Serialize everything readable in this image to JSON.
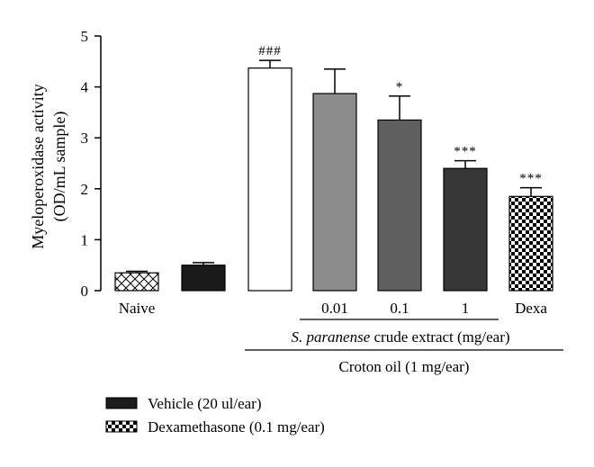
{
  "chart_data": {
    "type": "bar",
    "ylabel": "Myeloperoxidase activity",
    "ylabel_unit": "(OD/mL sample)",
    "ylim": [
      0,
      5
    ],
    "yticks": [
      "0",
      "1",
      "2",
      "3",
      "4",
      "5"
    ],
    "bars": [
      {
        "label": "Naive",
        "value": 0.35,
        "error": 0.03,
        "sig": "",
        "pattern": "crosshatch",
        "color": "#ffffff"
      },
      {
        "label": "",
        "value": 0.5,
        "error": 0.05,
        "sig": "",
        "pattern": "solid",
        "color": "#1a1a1a"
      },
      {
        "label": "",
        "value": 4.37,
        "error": 0.15,
        "sig": "###",
        "pattern": "solid",
        "color": "#ffffff"
      },
      {
        "label": "0.01",
        "value": 3.87,
        "error": 0.48,
        "sig": "",
        "pattern": "solid",
        "color": "#8c8c8c"
      },
      {
        "label": "0.1",
        "value": 3.35,
        "error": 0.47,
        "sig": "*",
        "pattern": "solid",
        "color": "#5f5f5f"
      },
      {
        "label": "1",
        "value": 2.4,
        "error": 0.15,
        "sig": "***",
        "pattern": "solid",
        "color": "#363636"
      },
      {
        "label": "Dexa",
        "value": 1.85,
        "error": 0.17,
        "sig": "***",
        "pattern": "checker",
        "color": "#ffffff"
      }
    ],
    "group_labels": {
      "extract": {
        "prefix": "S. paranense",
        "suffix": " crude extract (mg/ear)"
      },
      "croton": "Croton oil (1 mg/ear)"
    },
    "legend": [
      {
        "label": "Vehicle (20 ul/ear)",
        "pattern": "solid",
        "color": "#1a1a1a"
      },
      {
        "label": "Dexamethasone (0.1 mg/ear)",
        "pattern": "checker",
        "color": "#ffffff"
      }
    ]
  }
}
